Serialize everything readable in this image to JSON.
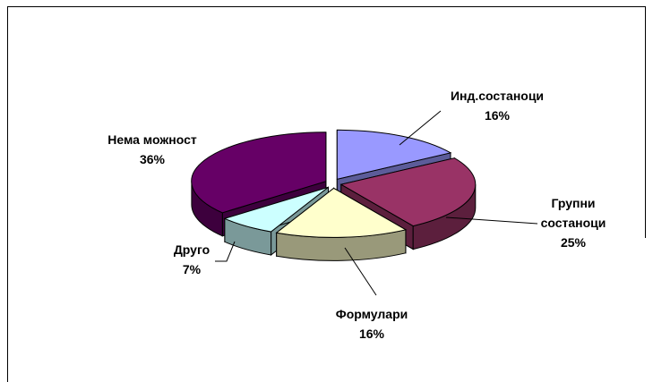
{
  "chart_data": {
    "type": "pie3d",
    "categories": [
      "Инд.состаноци",
      "Групни состаноци",
      "Формулари",
      "Друго",
      "Нема можност"
    ],
    "values": [
      16,
      25,
      16,
      7,
      36
    ],
    "value_labels": [
      "16%",
      "25%",
      "16%",
      "7%",
      "36%"
    ],
    "colors": [
      "#9999ff",
      "#993366",
      "#ffffcc",
      "#ccffff",
      "#660066"
    ]
  }
}
